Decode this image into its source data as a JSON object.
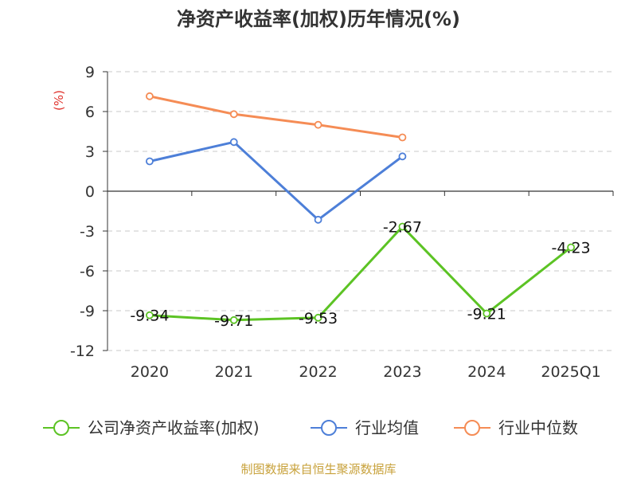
{
  "chart_data": {
    "type": "line",
    "title": "净资产收益率(加权)历年情况(%)",
    "unit_label": "(%)",
    "categories": [
      "2020",
      "2021",
      "2022",
      "2023",
      "2024",
      "2025Q1"
    ],
    "ylim": [
      -12,
      9
    ],
    "yticks": [
      9,
      6,
      3,
      0,
      -3,
      -6,
      -9,
      -12
    ],
    "grid": true,
    "legend_position": "bottom",
    "series": [
      {
        "name": "公司净资产收益率(加权)",
        "color": "#5cc324",
        "values": [
          -9.34,
          -9.71,
          -9.53,
          -2.67,
          -9.21,
          -4.23
        ],
        "labels": [
          "-9.34",
          "-9.71",
          "-9.53",
          "-2.67",
          "-9.21",
          "-4.23"
        ]
      },
      {
        "name": "行业均值",
        "color": "#4d7fd8",
        "values": [
          2.25,
          3.7,
          -2.15,
          2.62,
          null,
          null
        ]
      },
      {
        "name": "行业中位数",
        "color": "#f58c55",
        "values": [
          7.15,
          5.8,
          5.0,
          4.05,
          null,
          null
        ]
      }
    ],
    "source": "制图数据来自恒生聚源数据库"
  }
}
